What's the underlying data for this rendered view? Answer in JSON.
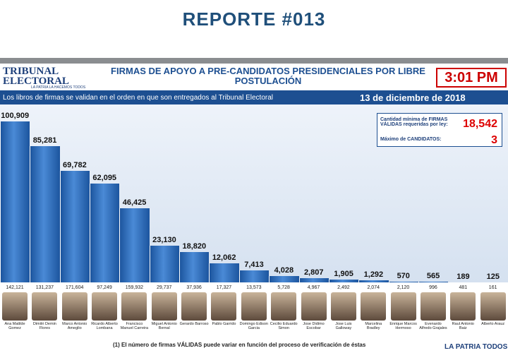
{
  "header": {
    "title": "REPORTE #013"
  },
  "banner": {
    "logo_name": "TRIBUNAL ELECTORAL",
    "logo_tagline": "LA PATRIA LA HACEMOS TODOS",
    "heading": "FIRMAS DE APOYO A PRE-CANDIDATOS PRESIDENCIALES POR LIBRE POSTULACIÓN",
    "time": "3:01 PM",
    "note": "Los libros de firmas se validan en el orden en que son entregados al Tribunal Electoral",
    "date": "13 de diciembre de 2018"
  },
  "info": {
    "min_label": "Cantidad mínima de FIRMAS VÁLIDAS requeridas por ley:",
    "min_value": "18,542",
    "max_label": "Máximo de CANDIDATOS:",
    "max_value": "3"
  },
  "chart_data": {
    "type": "bar",
    "color": "#2a68b4",
    "categories": [
      "Ana Matilde Gomez",
      "Dimitri Demin Flores",
      "Marco Antonio Ameglio",
      "Ricardo Alberto Lombana",
      "Francisco Manuel Carreira",
      "Miguel Antonio Bernal",
      "Gerardo Barroso",
      "Pablo Garrido",
      "Domingo Edison Garcia",
      "Cecilio Eduardo Simon",
      "Jose Didimo Escobar",
      "Jose Luis Galloway",
      "Marcelina Bradley",
      "Enrique Marcos Hermoso",
      "Evenardo Alfredo Grajales",
      "Raul Antonio Baiz",
      "Alberto Arauz"
    ],
    "values": [
      100909,
      85281,
      69782,
      62095,
      46425,
      23130,
      18820,
      12062,
      7413,
      4028,
      2807,
      1905,
      1292,
      570,
      565,
      189,
      125
    ],
    "value_labels": [
      "100,909",
      "85,281",
      "69,782",
      "62,095",
      "46,425",
      "23,130",
      "18,820",
      "12,062",
      "7,413",
      "4,028",
      "2,807",
      "1,905",
      "1,292",
      "570",
      "565",
      "189",
      "125"
    ],
    "totals_printed": [
      "142,121",
      "131,237",
      "171,604",
      "97,249",
      "159,932",
      "29,737",
      "37,936",
      "17,327",
      "13,573",
      "5,728",
      "4,967",
      "2,492",
      "2,074",
      "2,120",
      "996",
      "481",
      "161"
    ]
  },
  "footer": {
    "footnote": "(1) El número de firmas VÁLIDAS puede variar en función del proceso de verificación de éstas",
    "brand": "LA PATRIA TODOS"
  }
}
